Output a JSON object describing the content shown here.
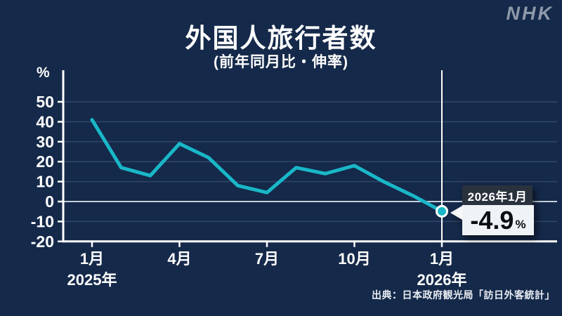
{
  "brand": {
    "logo": "NHK"
  },
  "header": {
    "title": "外国人旅行者数",
    "subtitle": "(前年同月比・伸率)"
  },
  "callout": {
    "label": "2026年1月",
    "value": "-4.9",
    "unit": "%"
  },
  "source": "出典：日本政府観光局「訪日外客統計」",
  "colors": {
    "background": "#15294a",
    "line": "#19b7c8",
    "axis": "#ffffff",
    "grid": "#31476b",
    "zero_line": "#c3cdd9",
    "highlight_line": "#ffffff",
    "point_fill": "#19b7c8",
    "point_ring": "#ffffff",
    "callout_label_bg": "#2a323e",
    "callout_value_bg": "#f0f3f5",
    "logo": "#8e99ab"
  },
  "chart_data": {
    "type": "line",
    "title": "外国人旅行者数",
    "subtitle": "(前年同月比・伸率)",
    "ylabel": "%",
    "x": [
      "2025-01",
      "2025-02",
      "2025-03",
      "2025-04",
      "2025-05",
      "2025-06",
      "2025-07",
      "2025-08",
      "2025-09",
      "2025-10",
      "2025-11",
      "2025-12",
      "2026-01"
    ],
    "values": [
      41,
      17,
      13,
      29,
      22,
      8,
      4.5,
      17,
      14,
      18,
      10,
      3,
      -4.9
    ],
    "yticks": [
      50,
      40,
      30,
      20,
      10,
      0,
      -10,
      -20
    ],
    "ylim": [
      -20,
      55
    ],
    "grid": true,
    "legend": false,
    "xticks": [
      {
        "index": 0,
        "label": "1月"
      },
      {
        "index": 3,
        "label": "4月"
      },
      {
        "index": 6,
        "label": "7月"
      },
      {
        "index": 9,
        "label": "10月"
      },
      {
        "index": 12,
        "label": "1月"
      }
    ],
    "year_labels": [
      {
        "index": 0,
        "label": "2025年"
      },
      {
        "index": 12,
        "label": "2026年"
      }
    ],
    "highlight": {
      "index": 12,
      "label": "2026年1月",
      "value": -4.9
    }
  }
}
